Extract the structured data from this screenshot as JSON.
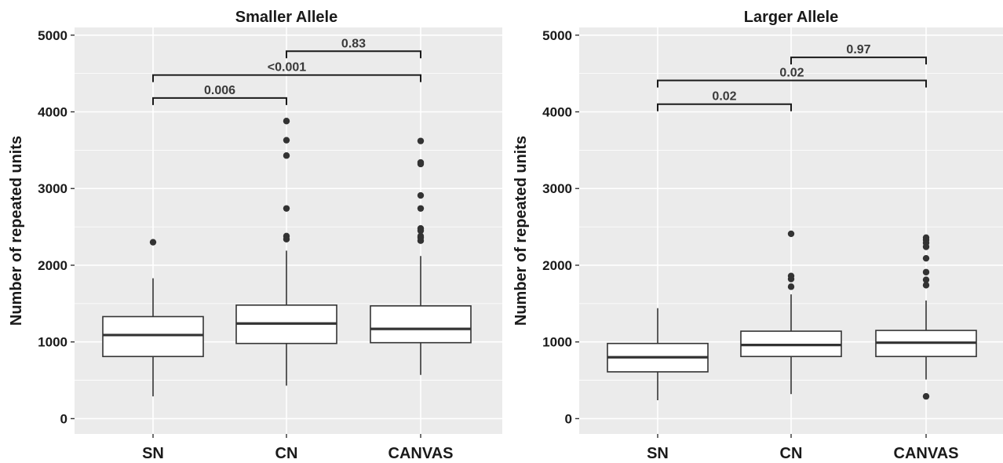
{
  "chart_data": [
    {
      "type": "box",
      "title": "Smaller Allele",
      "xlabel": "",
      "ylabel": "Number of repeated units",
      "ylim": [
        -200,
        5100
      ],
      "yticks": [
        0,
        1000,
        2000,
        3000,
        4000,
        5000
      ],
      "categories": [
        "SN",
        "CN",
        "CANVAS"
      ],
      "boxes": [
        {
          "category": "SN",
          "whisker_low": 290,
          "q1": 810,
          "median": 1090,
          "q3": 1330,
          "whisker_high": 1830,
          "outliers": [
            2300
          ]
        },
        {
          "category": "CN",
          "whisker_low": 430,
          "q1": 980,
          "median": 1240,
          "q3": 1480,
          "whisker_high": 2190,
          "outliers": [
            2340,
            2380,
            2740,
            3430,
            3630,
            3880
          ]
        },
        {
          "category": "CANVAS",
          "whisker_low": 570,
          "q1": 990,
          "median": 1170,
          "q3": 1470,
          "whisker_high": 2120,
          "outliers": [
            2320,
            2360,
            2380,
            2450,
            2480,
            2740,
            2910,
            3320,
            3340,
            3620
          ]
        }
      ],
      "comparisons": [
        {
          "from": "SN",
          "to": "CN",
          "label": "0.006",
          "y": 4180
        },
        {
          "from": "SN",
          "to": "CANVAS",
          "label": "<0.001",
          "y": 4480
        },
        {
          "from": "CN",
          "to": "CANVAS",
          "label": "0.83",
          "y": 4790
        }
      ]
    },
    {
      "type": "box",
      "title": "Larger Allele",
      "xlabel": "",
      "ylabel": "Number of repeated units",
      "ylim": [
        -200,
        5100
      ],
      "yticks": [
        0,
        1000,
        2000,
        3000,
        4000,
        5000
      ],
      "categories": [
        "SN",
        "CN",
        "CANVAS"
      ],
      "boxes": [
        {
          "category": "SN",
          "whisker_low": 240,
          "q1": 610,
          "median": 800,
          "q3": 980,
          "whisker_high": 1440,
          "outliers": []
        },
        {
          "category": "CN",
          "whisker_low": 320,
          "q1": 810,
          "median": 960,
          "q3": 1140,
          "whisker_high": 1620,
          "outliers": [
            1720,
            1820,
            1860,
            2410
          ]
        },
        {
          "category": "CANVAS",
          "whisker_low": 510,
          "q1": 810,
          "median": 990,
          "q3": 1150,
          "whisker_high": 1540,
          "outliers": [
            290,
            1740,
            1810,
            1910,
            2090,
            2240,
            2290,
            2330,
            2360
          ]
        }
      ],
      "comparisons": [
        {
          "from": "SN",
          "to": "CN",
          "label": "0.02",
          "y": 4100
        },
        {
          "from": "SN",
          "to": "CANVAS",
          "label": "0.02",
          "y": 4410
        },
        {
          "from": "CN",
          "to": "CANVAS",
          "label": "0.97",
          "y": 4710
        }
      ]
    }
  ]
}
